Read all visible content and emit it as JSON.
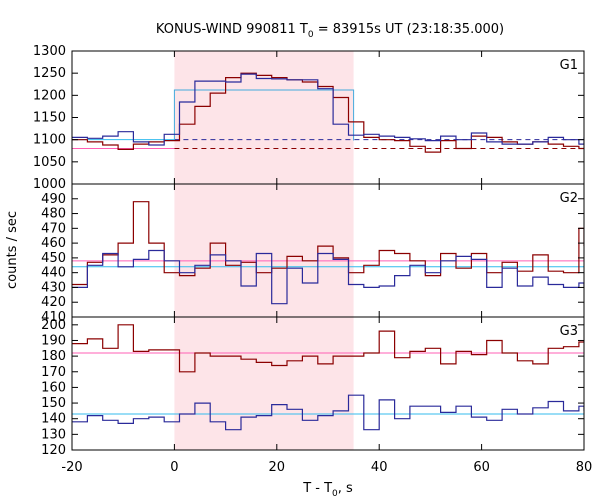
{
  "chart_data": {
    "type": "line",
    "title_main": "KONUS-WIND 990811 T",
    "title_sub": "0",
    "title_rest": " = 83915s UT (23:18:35.000)",
    "xlabel_main": "T - T",
    "xlabel_sub": "0",
    "xlabel_rest": ", s",
    "ylabel": "counts / sec",
    "xlim": [
      -20,
      80
    ],
    "x_ticks": [
      -20,
      0,
      20,
      40,
      60,
      80
    ],
    "x_tick_labels": [
      "-20",
      "0",
      "20",
      "40",
      "60",
      "80"
    ],
    "highlight_interval": [
      0,
      35
    ],
    "colors": {
      "series_a": "#8b0000",
      "series_b": "#2a2a9a",
      "background_a": "#ff5fb4",
      "background_b": "#33bbee",
      "highlight": "#fde4e8",
      "model": "#44aadd",
      "model_overlay": "#ff88cc"
    },
    "panels": [
      {
        "label": "G1",
        "ylim": [
          1000,
          1300
        ],
        "y_ticks": [
          1000,
          1050,
          1100,
          1150,
          1200,
          1250,
          1300
        ],
        "y_tick_labels": [
          "1000",
          "1050",
          "1100",
          "1150",
          "1200",
          "1250",
          "1300"
        ],
        "edges": [
          -20,
          -17,
          -14,
          -11,
          -8,
          -5,
          -2,
          1,
          4,
          7,
          10,
          13,
          16,
          19,
          22,
          25,
          28,
          31,
          34,
          37,
          40,
          43,
          46,
          49,
          52,
          55,
          58,
          61,
          64,
          67,
          70,
          73,
          76,
          79,
          80
        ],
        "series": [
          {
            "color_key": "series_a",
            "values": [
              1100,
              1095,
              1088,
              1078,
              1090,
              1095,
              1098,
              1135,
              1175,
              1205,
              1240,
              1250,
              1245,
              1240,
              1235,
              1230,
              1220,
              1195,
              1140,
              1105,
              1100,
              1098,
              1085,
              1072,
              1098,
              1080,
              1108,
              1105,
              1095,
              1090,
              1095,
              1090,
              1085,
              1080,
              1082
            ]
          },
          {
            "color_key": "series_b",
            "values": [
              1105,
              1103,
              1108,
              1118,
              1095,
              1088,
              1112,
              1185,
              1232,
              1232,
              1230,
              1248,
              1238,
              1237,
              1235,
              1235,
              1215,
              1135,
              1110,
              1112,
              1108,
              1105,
              1102,
              1098,
              1108,
              1100,
              1115,
              1095,
              1090,
              1090,
              1095,
              1105,
              1100,
              1090,
              1105
            ]
          }
        ],
        "background": [
          {
            "color_key": "background_a",
            "value": 1080
          },
          {
            "color_key": "background_b",
            "value": 1100
          }
        ],
        "model": {
          "color_key": "model",
          "x": [
            0,
            35
          ],
          "value": 1212,
          "base": 1098
        }
      },
      {
        "label": "G2",
        "ylim": [
          410,
          500
        ],
        "y_ticks": [
          410,
          420,
          430,
          440,
          450,
          460,
          470,
          480,
          490
        ],
        "y_tick_labels": [
          "410",
          "420",
          "430",
          "440",
          "450",
          "460",
          "470",
          "480",
          "490"
        ],
        "edges": [
          -20,
          -17,
          -14,
          -11,
          -8,
          -5,
          -2,
          1,
          4,
          7,
          10,
          13,
          16,
          19,
          22,
          25,
          28,
          31,
          34,
          37,
          40,
          43,
          46,
          49,
          52,
          55,
          58,
          61,
          64,
          67,
          70,
          73,
          76,
          79,
          80
        ],
        "series": [
          {
            "color_key": "series_a",
            "values": [
              432,
              447,
              452,
              460,
              488,
              460,
              440,
              438,
              443,
              460,
              445,
              447,
              440,
              443,
              451,
              448,
              458,
              450,
              440,
              445,
              455,
              453,
              448,
              438,
              453,
              443,
              453,
              440,
              447,
              441,
              452,
              441,
              440,
              470,
              458
            ]
          },
          {
            "color_key": "series_b",
            "values": [
              430,
              445,
              453,
              444,
              449,
              455,
              448,
              440,
              445,
              452,
              448,
              431,
              453,
              419,
              443,
              433,
              453,
              449,
              432,
              430,
              431,
              438,
              445,
              440,
              448,
              451,
              449,
              430,
              443,
              431,
              437,
              432,
              430,
              433,
              430
            ]
          }
        ],
        "background": [
          {
            "color_key": "background_a",
            "value": 448
          },
          {
            "color_key": "background_b",
            "value": 444
          }
        ]
      },
      {
        "label": "G3",
        "ylim": [
          120,
          205
        ],
        "y_ticks": [
          120,
          130,
          140,
          150,
          160,
          170,
          180,
          190,
          200
        ],
        "y_tick_labels": [
          "120",
          "130",
          "140",
          "150",
          "160",
          "170",
          "180",
          "190",
          "200"
        ],
        "edges": [
          -20,
          -17,
          -14,
          -11,
          -8,
          -5,
          -2,
          1,
          4,
          7,
          10,
          13,
          16,
          19,
          22,
          25,
          28,
          31,
          34,
          37,
          40,
          43,
          46,
          49,
          52,
          55,
          58,
          61,
          64,
          67,
          70,
          73,
          76,
          79,
          80
        ],
        "series": [
          {
            "color_key": "series_a",
            "values": [
              188,
              191,
              185,
              200,
              183,
              184,
              184,
              170,
              182,
              180,
              180,
              178,
              176,
              174,
              177,
              180,
              175,
              180,
              180,
              182,
              196,
              179,
              183,
              185,
              175,
              183,
              181,
              190,
              182,
              177,
              175,
              185,
              186,
              189,
              190
            ]
          },
          {
            "color_key": "series_b",
            "values": [
              138,
              142,
              139,
              137,
              140,
              141,
              138,
              143,
              150,
              138,
              133,
              141,
              142,
              149,
              146,
              139,
              142,
              145,
              155,
              133,
              152,
              140,
              148,
              148,
              144,
              148,
              141,
              139,
              146,
              143,
              147,
              151,
              145,
              148,
              145
            ]
          }
        ],
        "background": [
          {
            "color_key": "background_a",
            "value": 182
          },
          {
            "color_key": "background_b",
            "value": 143
          }
        ]
      }
    ]
  }
}
